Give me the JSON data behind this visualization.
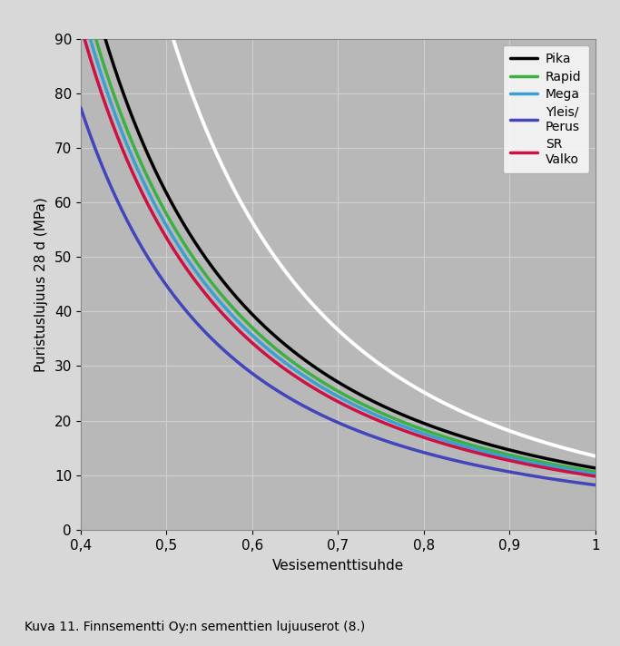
{
  "title": "",
  "xlabel": "Vesisementtisuhde",
  "ylabel": "Puristuslujuus 28 d (MPa)",
  "caption": "Kuva 11. Finnsementti Oy:n sementtien lujuuserot (8.)",
  "xlim": [
    0.4,
    1.0
  ],
  "ylim": [
    0,
    90
  ],
  "xticks": [
    0.4,
    0.5,
    0.6,
    0.7,
    0.8,
    0.9,
    1.0
  ],
  "xtick_labels": [
    "0,4",
    "0,5",
    "0,6",
    "0,7",
    "0,8",
    "0,9",
    "1"
  ],
  "yticks": [
    0,
    10,
    20,
    30,
    40,
    50,
    60,
    70,
    80,
    90
  ],
  "figure_facecolor": "#d8d8d8",
  "plot_bg_color": "#b8b8b8",
  "grid_color": "#d0d0d0",
  "curves": {
    "white": {
      "color": "#ffffff",
      "linewidth": 2.8,
      "label": null,
      "A": 13.5,
      "n": 2.8
    },
    "pika": {
      "color": "#000000",
      "linewidth": 2.5,
      "label": "Pika",
      "A": 11.3,
      "n": 2.45
    },
    "rapid": {
      "color": "#3cb043",
      "linewidth": 2.5,
      "label": "Rapid",
      "A": 10.6,
      "n": 2.45
    },
    "mega": {
      "color": "#3b9fd4",
      "linewidth": 2.5,
      "label": "Mega",
      "A": 10.2,
      "n": 2.45
    },
    "yleis": {
      "color": "#4444bb",
      "linewidth": 2.5,
      "label": "Yleis/\nPerus",
      "A": 8.2,
      "n": 2.45
    },
    "sr": {
      "color": "#cc1144",
      "linewidth": 2.5,
      "label": "SR\nValko",
      "A": 9.8,
      "n": 2.45
    }
  },
  "curve_order": [
    "white",
    "pika",
    "rapid",
    "mega",
    "yleis",
    "sr"
  ],
  "legend_loc": "upper right",
  "legend_fontsize": 10,
  "axis_fontsize": 11,
  "tick_fontsize": 11,
  "caption_fontsize": 10,
  "figsize": [
    6.83,
    7.12
  ],
  "dpi": 100
}
